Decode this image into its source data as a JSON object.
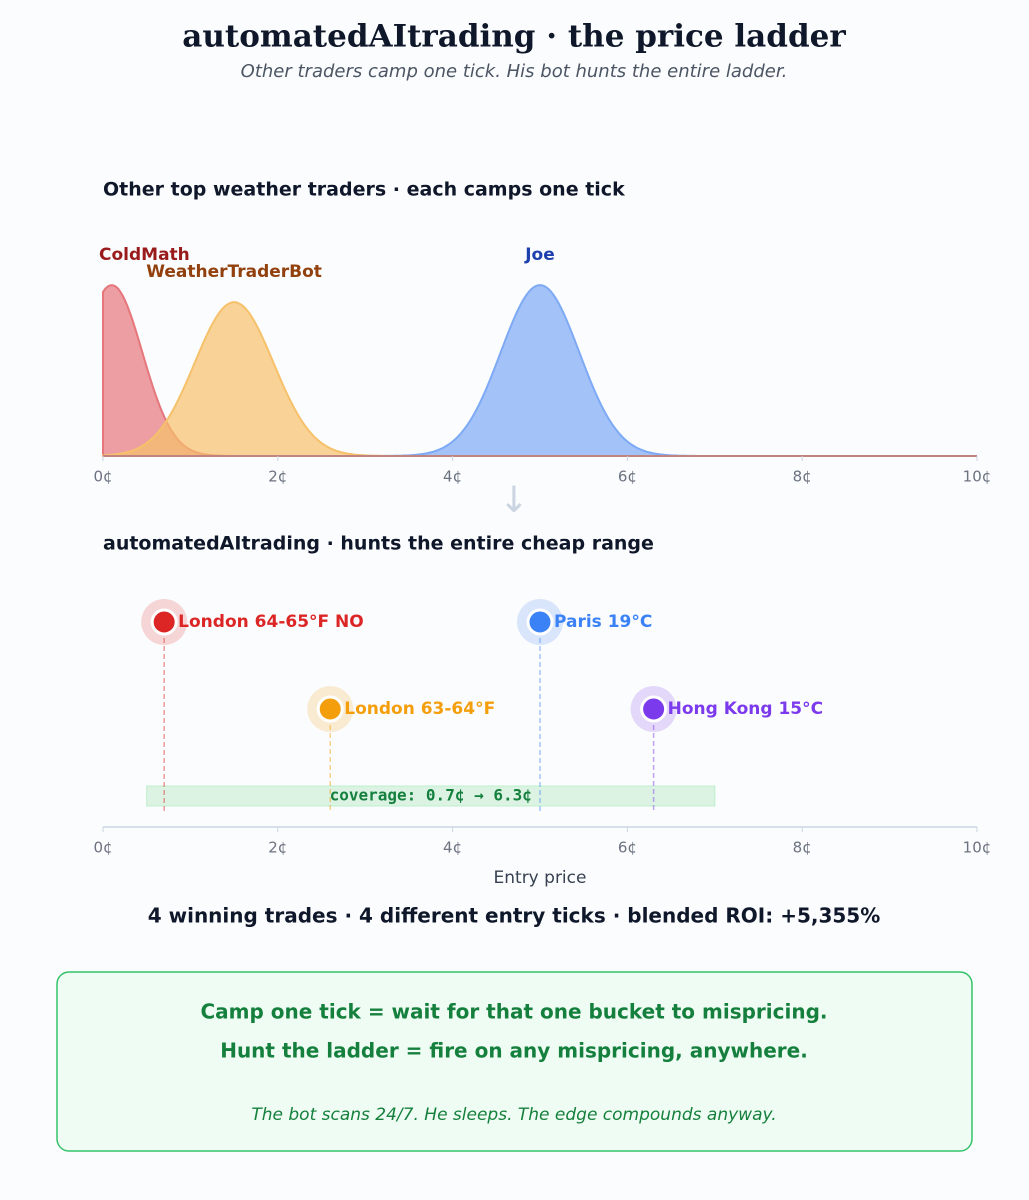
{
  "header": {
    "title": "automatedAItrading  ·  the price ladder",
    "subtitle": "Other traders camp one tick. His bot hunts the entire ladder."
  },
  "chart_data": [
    {
      "type": "density",
      "title": "Other top weather traders  ·  each camps one tick",
      "series": [
        {
          "name": "ColdMath",
          "color": "#e5767c",
          "label_color": "#991b1b",
          "mean": 0.1,
          "sd": 0.35,
          "peak": 1.0
        },
        {
          "name": "WeatherTraderBot",
          "color": "#f6c16a",
          "label_color": "#92400e",
          "mean": 1.5,
          "sd": 0.45,
          "peak": 0.9
        },
        {
          "name": "Joe",
          "color": "#7eaaf5",
          "label_color": "#1e40af",
          "mean": 5.0,
          "sd": 0.45,
          "peak": 1.0
        }
      ],
      "xlim": [
        0,
        10
      ],
      "ylim": [
        0,
        1.1
      ],
      "xticks": [
        {
          "value": 0,
          "label": "0¢"
        },
        {
          "value": 2,
          "label": "2¢"
        },
        {
          "value": 4,
          "label": "4¢"
        },
        {
          "value": 6,
          "label": "6¢"
        },
        {
          "value": 8,
          "label": "8¢"
        },
        {
          "value": 10,
          "label": "10¢"
        }
      ]
    },
    {
      "type": "strip",
      "title": "automatedAItrading  ·  hunts the entire cheap range",
      "points": [
        {
          "name": "London 64-65°F NO",
          "color": "#dc2626",
          "x": 0.7
        },
        {
          "name": "London 63-64°F",
          "color": "#f59e0b",
          "x": 2.6
        },
        {
          "name": "Paris 19°C",
          "color": "#3b82f6",
          "x": 5.0
        },
        {
          "name": "Hong Kong 15°C",
          "color": "#7c3aed",
          "x": 6.3
        }
      ],
      "coverage_range": [
        0.5,
        7.0
      ],
      "coverage_label": "coverage: 0.7¢ → 6.3¢",
      "xlabel": "Entry price",
      "xlim": [
        0,
        10
      ],
      "xticks": [
        {
          "value": 0,
          "label": "0¢"
        },
        {
          "value": 2,
          "label": "2¢"
        },
        {
          "value": 4,
          "label": "4¢"
        },
        {
          "value": 6,
          "label": "6¢"
        },
        {
          "value": 8,
          "label": "8¢"
        },
        {
          "value": 10,
          "label": "10¢"
        }
      ]
    }
  ],
  "summary": "4 winning trades  ·  4 different entry ticks  ·  blended ROI: +5,355%",
  "callout": {
    "line1": "Camp one tick  =  wait for that one bucket to mispricing.",
    "line2": "Hunt the ladder  =  fire on any mispricing, anywhere.",
    "note": "The bot scans 24/7. He sleeps. The edge compounds anyway."
  }
}
